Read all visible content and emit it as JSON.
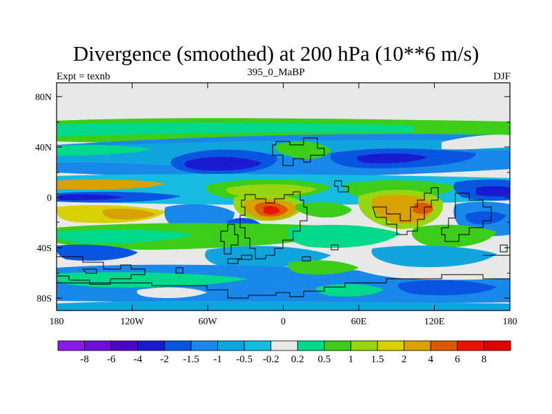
{
  "title": "Divergence (smoothed) at 200 hPa (10**6 m/s)",
  "experiment_label": "Expt = texnb",
  "period_label": "395_0_MaBP",
  "season_label": "DJF",
  "lat_ticks": [
    "80N",
    "40N",
    "0",
    "40S",
    "80S"
  ],
  "lon_ticks": [
    "180",
    "120W",
    "60W",
    "0",
    "60E",
    "120E",
    "180"
  ],
  "colorbar": {
    "labels": [
      "-8",
      "-6",
      "-4",
      "-2",
      "-1.5",
      "-1",
      "-0.5",
      "-0.2",
      "0.2",
      "0.5",
      "1",
      "1.5",
      "2",
      "4",
      "6",
      "8"
    ],
    "colors": [
      "#8a1ae8",
      "#6a10d8",
      "#4d06c8",
      "#1a1ad0",
      "#0a55e0",
      "#1a88e8",
      "#12a4de",
      "#16bce0",
      "#e8e8e8",
      "#00d88a",
      "#3ccc1a",
      "#98d410",
      "#d8d000",
      "#d8a000",
      "#dc5a00",
      "#e81400",
      "#e00000"
    ]
  }
}
